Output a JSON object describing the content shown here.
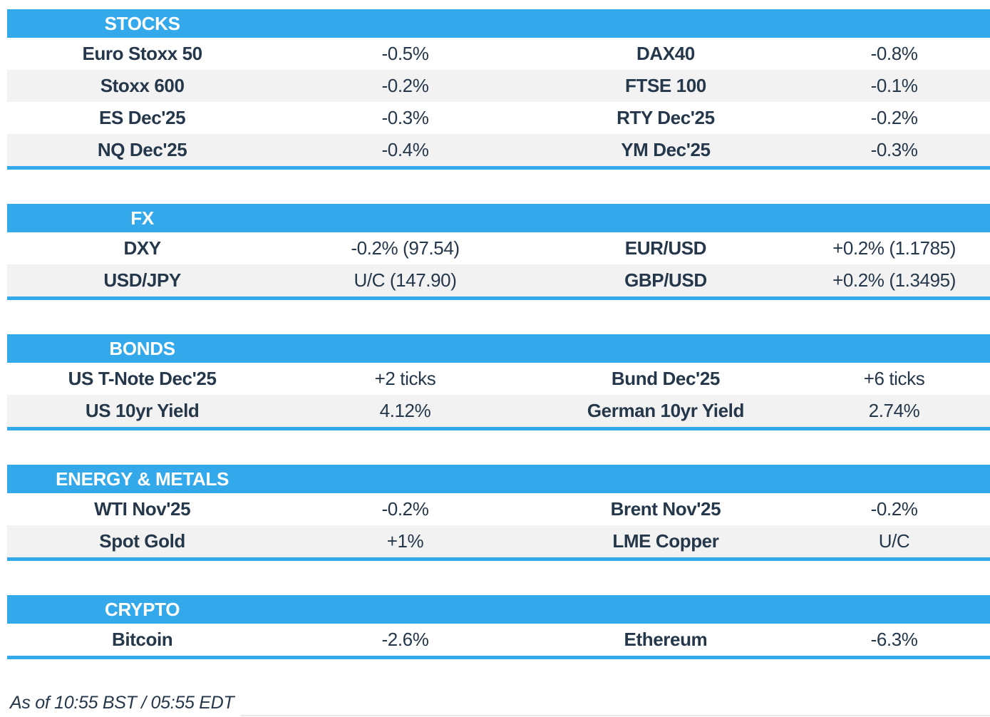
{
  "chart_data": {
    "type": "table",
    "sections": [
      {
        "id": "stocks",
        "title": "STOCKS",
        "rows": [
          {
            "cells": [
              {
                "label": "Euro Stoxx 50",
                "value": "-0.5%"
              },
              {
                "label": "DAX40",
                "value": "-0.8%"
              }
            ]
          },
          {
            "cells": [
              {
                "label": "Stoxx 600",
                "value": "-0.2%"
              },
              {
                "label": "FTSE 100",
                "value": "-0.1%"
              }
            ]
          },
          {
            "cells": [
              {
                "label": "ES Dec'25",
                "value": "-0.3%"
              },
              {
                "label": "RTY Dec'25",
                "value": "-0.2%"
              }
            ]
          },
          {
            "cells": [
              {
                "label": "NQ Dec'25",
                "value": "-0.4%"
              },
              {
                "label": "YM Dec'25",
                "value": "-0.3%"
              }
            ]
          }
        ]
      },
      {
        "id": "fx",
        "title": "FX",
        "rows": [
          {
            "cells": [
              {
                "label": "DXY",
                "value": "-0.2% (97.54)"
              },
              {
                "label": "EUR/USD",
                "value": "+0.2% (1.1785)"
              }
            ]
          },
          {
            "cells": [
              {
                "label": "USD/JPY",
                "value": "U/C (147.90)"
              },
              {
                "label": "GBP/USD",
                "value": "+0.2% (1.3495)"
              }
            ]
          }
        ]
      },
      {
        "id": "bonds",
        "title": "BONDS",
        "rows": [
          {
            "cells": [
              {
                "label": "US T-Note Dec'25",
                "value": "+2 ticks"
              },
              {
                "label": "Bund Dec'25",
                "value": "+6 ticks"
              }
            ]
          },
          {
            "cells": [
              {
                "label": "US 10yr Yield",
                "value": "4.12%"
              },
              {
                "label": "German 10yr Yield",
                "value": "2.74%"
              }
            ]
          }
        ]
      },
      {
        "id": "energy-metals",
        "title": "ENERGY & METALS",
        "rows": [
          {
            "cells": [
              {
                "label": "WTI Nov'25",
                "value": "-0.2%"
              },
              {
                "label": "Brent Nov'25",
                "value": "-0.2%"
              }
            ]
          },
          {
            "cells": [
              {
                "label": "Spot Gold",
                "value": "+1%"
              },
              {
                "label": "LME Copper",
                "value": "U/C"
              }
            ]
          }
        ]
      },
      {
        "id": "crypto",
        "title": "CRYPTO",
        "rows": [
          {
            "cells": [
              {
                "label": "Bitcoin",
                "value": "-2.6%"
              },
              {
                "label": "Ethereum",
                "value": "-6.3%"
              }
            ]
          }
        ]
      }
    ]
  },
  "footer": {
    "as_of": "As of 10:55 BST / 05:55 EDT"
  },
  "colors": {
    "accent": "#33a9ec",
    "row_alt": "#f2f2f2",
    "text": "#25374a",
    "header_text": "#ffffff",
    "divider": "#e9e9e9"
  }
}
